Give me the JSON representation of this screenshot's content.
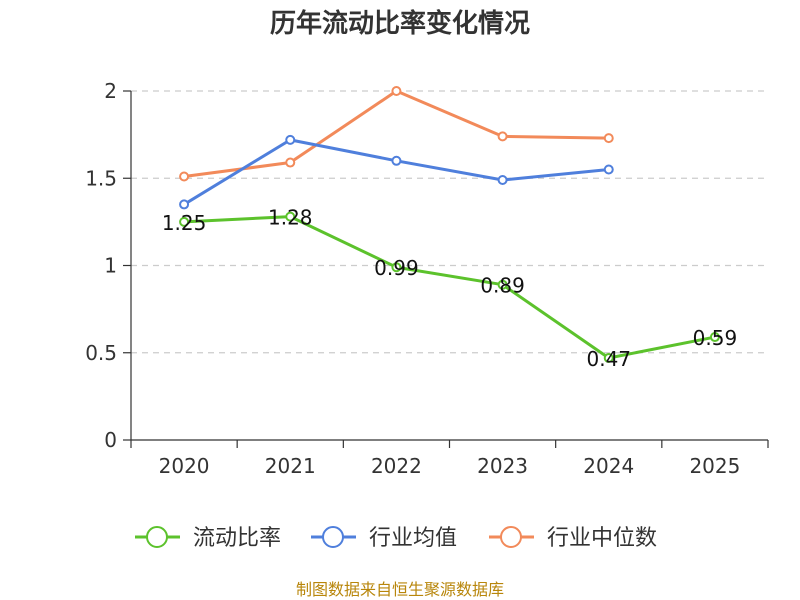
{
  "chart_data": {
    "type": "line",
    "title": "历年流动比率变化情况",
    "categories": [
      "2020",
      "2021",
      "2022",
      "2023",
      "2024",
      "2025"
    ],
    "ylim": [
      0,
      2
    ],
    "yticks": [
      0,
      0.5,
      1,
      1.5,
      2
    ],
    "ytick_labels": [
      "0",
      "0.5",
      "1",
      "1.5",
      "2"
    ],
    "grid": true,
    "legend_position": "bottom",
    "series": [
      {
        "name": "流动比率",
        "color": "#5cc22c",
        "values": [
          1.25,
          1.28,
          0.99,
          0.89,
          0.47,
          0.59
        ],
        "labels": [
          "1.25",
          "1.28",
          "0.99",
          "0.89",
          "0.47",
          "0.59"
        ]
      },
      {
        "name": "行业均值",
        "color": "#4f7fdc",
        "values": [
          1.35,
          1.72,
          1.6,
          1.49,
          1.55,
          null
        ]
      },
      {
        "name": "行业中位数",
        "color": "#f28a5a",
        "values": [
          1.51,
          1.59,
          2.0,
          1.74,
          1.73,
          null
        ]
      }
    ],
    "source": "制图数据来自恒生聚源数据库"
  }
}
